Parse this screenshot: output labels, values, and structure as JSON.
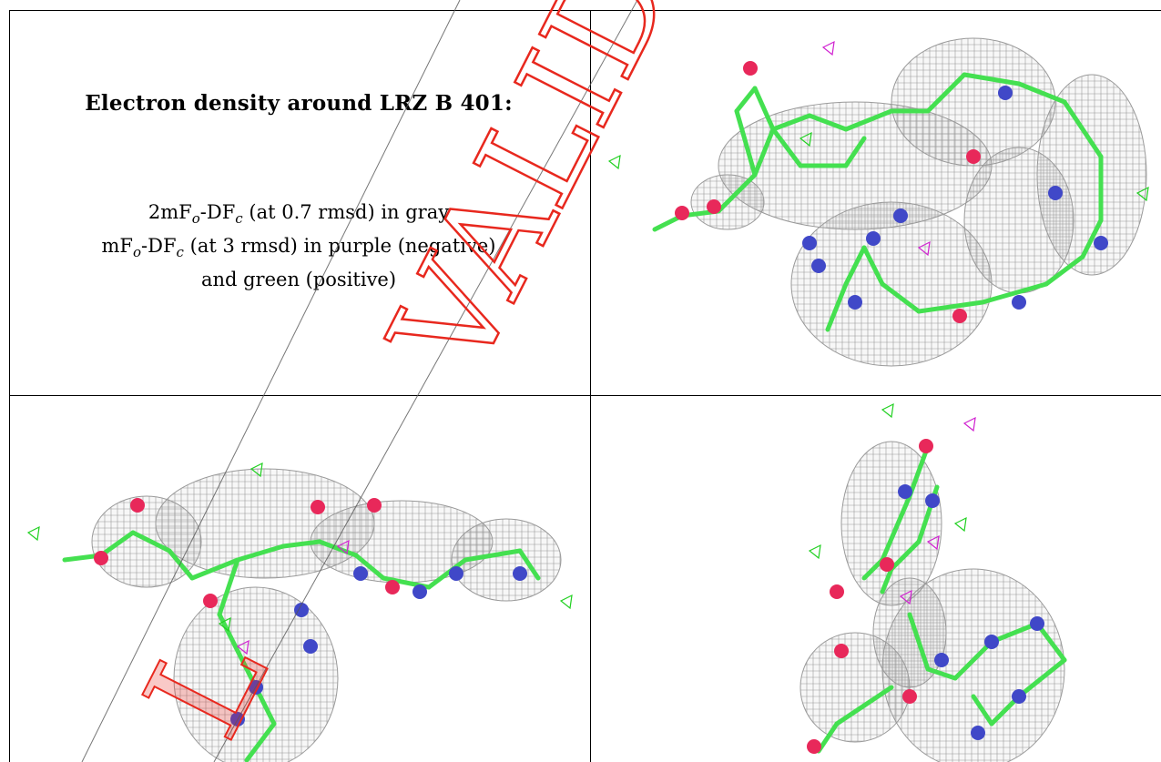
{
  "title": "Electron density around LRZ B 401:",
  "legend": {
    "line1": {
      "a": "2mF",
      "sub1": "o",
      "b": "-DF",
      "sub2": "c",
      "rest": " (at 0.7 rmsd) in gray"
    },
    "line2": {
      "a": "mF",
      "sub1": "o",
      "b": "-DF",
      "sub2": "c",
      "rest": " (at 3 rmsd) in purple (negative)"
    },
    "line3": "and green (positive)"
  },
  "watermark": {
    "text_top": "VALIDATI",
    "text_bottom": "L",
    "color": "#e8281e"
  },
  "colors": {
    "carbon": "#44e050",
    "nitrogen": "#4048c8",
    "oxygen": "#e8285a",
    "mesh": "#9a9a9a",
    "negative": "#d020d0",
    "positive": "#20d020"
  },
  "views": [
    "view-1",
    "view-2",
    "view-3"
  ]
}
